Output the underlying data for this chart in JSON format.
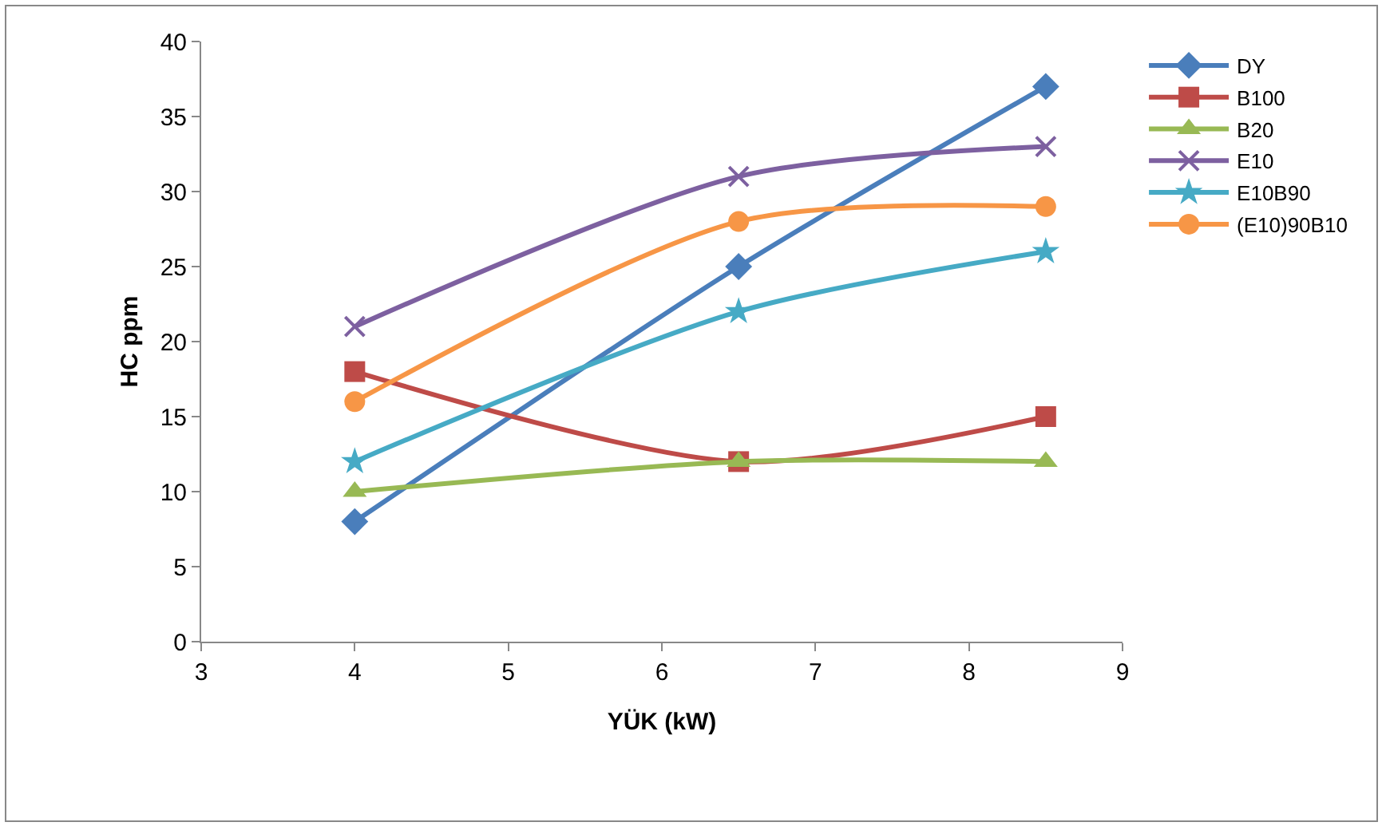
{
  "chart_data": {
    "type": "line",
    "xlabel": "YÜK (kW)",
    "ylabel": "HC ppm",
    "x": [
      4,
      6.5,
      8.5
    ],
    "xlim": [
      3,
      9
    ],
    "xticks": [
      3,
      4,
      5,
      6,
      7,
      8,
      9
    ],
    "ylim": [
      0,
      40
    ],
    "yticks": [
      0,
      5,
      10,
      15,
      20,
      25,
      30,
      35,
      40
    ],
    "grid": false,
    "legend": "right",
    "line_style": "solid",
    "series": [
      {
        "name": "DY",
        "color": "#4a7ebb",
        "marker": "diamond",
        "values": [
          8,
          25,
          37
        ]
      },
      {
        "name": "B100",
        "color": "#be4b48",
        "marker": "square",
        "values": [
          18,
          12,
          15
        ]
      },
      {
        "name": "B20",
        "color": "#98b954",
        "marker": "triangle",
        "values": [
          10,
          12,
          12
        ]
      },
      {
        "name": "E10",
        "color": "#7d60a0",
        "marker": "cross",
        "values": [
          21,
          31,
          33
        ]
      },
      {
        "name": "E10B90",
        "color": "#46aac5",
        "marker": "star",
        "values": [
          12,
          22,
          26
        ]
      },
      {
        "name": "(E10)90B10",
        "color": "#f79646",
        "marker": "circle",
        "values": [
          16,
          28,
          29
        ]
      }
    ]
  }
}
